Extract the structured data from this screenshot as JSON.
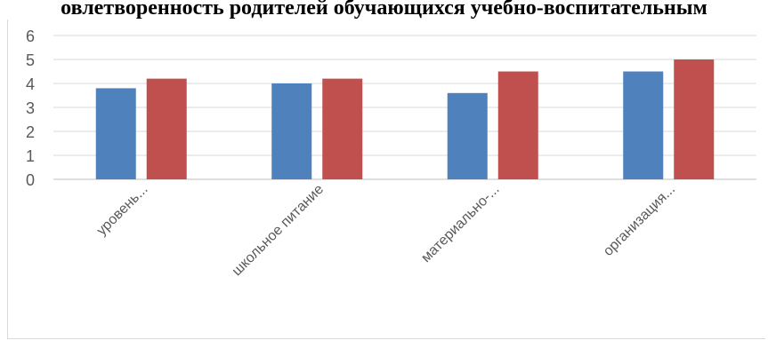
{
  "chart_data": {
    "type": "bar",
    "title": "овлетворенность родителей обучающихся учебно-воспитательным",
    "categories": [
      "уровень...",
      "школьное питание",
      "материально-...",
      "организация..."
    ],
    "series": [
      {
        "values": [
          3.8,
          4.0,
          3.6,
          4.5
        ],
        "color": "#4f81bd"
      },
      {
        "values": [
          4.2,
          4.2,
          4.5,
          5.0
        ],
        "color": "#c0504d"
      }
    ],
    "ylim": [
      0,
      6
    ],
    "yticks": [
      0,
      1,
      2,
      3,
      4,
      5,
      6
    ],
    "grid": true,
    "legend": "none"
  }
}
